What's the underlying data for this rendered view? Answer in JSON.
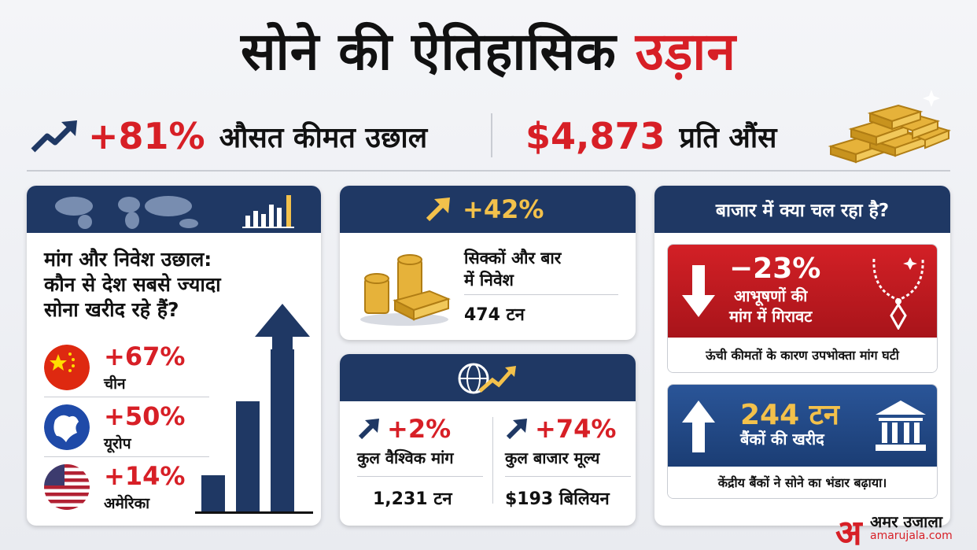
{
  "title": {
    "part1": "सोने की ऐतिहासिक",
    "part2": "उड़ान"
  },
  "headline_stats": {
    "left": {
      "value": "+81%",
      "label": "औसत कीमत उछाल"
    },
    "right": {
      "value": "$4,873",
      "label": "प्रति औंस"
    }
  },
  "demand_card": {
    "question": [
      "मांग और निवेश उछाल:",
      "कौन से देश सबसे ज्यादा",
      "सोना खरीद रहे हैं?"
    ],
    "countries": [
      {
        "pct": "+67%",
        "name": "चीन"
      },
      {
        "pct": "+50%",
        "name": "यूरोप"
      },
      {
        "pct": "+14%",
        "name": "अमेरिका"
      }
    ]
  },
  "coins_card": {
    "pct": "+42%",
    "label": [
      "सिक्कों और बार",
      "में निवेश"
    ],
    "value": "474 टन"
  },
  "global_card": {
    "left": {
      "pct": "+2%",
      "label": "कुल वैश्विक मांग",
      "value": "1,231 टन"
    },
    "right": {
      "pct": "+74%",
      "label": "कुल बाजार मूल्य",
      "value": "$193 बिलियन"
    }
  },
  "market_card": {
    "title": "बाजार में क्या चल रहा है?",
    "jewelry": {
      "value": "−23%",
      "label": [
        "आभूषणों की",
        "मांग में गिरावट"
      ],
      "note": "ऊंची कीमतों के कारण उपभोक्ता मांग घटी"
    },
    "banks": {
      "value": "244 टन",
      "label": "बैंकों की खरीद",
      "note": "केंद्रीय बैंकों ने सोने का भंडार बढ़ाया।"
    }
  },
  "brand": {
    "logo_char": "अ",
    "name": "अमर उजाला",
    "site": "amarujala.com"
  },
  "colors": {
    "red": "#d71f26",
    "navy": "#1f3864",
    "gold": "#f3c14b"
  },
  "icons": [
    "trend-up-arrow-icon",
    "gold-bars-icon",
    "world-map-icon",
    "bar-chart-icon",
    "china-flag-icon",
    "europe-globe-icon",
    "usa-flag-icon",
    "gold-coins-icon",
    "globe-trend-icon",
    "necklace-icon",
    "bank-icon",
    "down-arrow-icon",
    "up-arrow-icon"
  ]
}
